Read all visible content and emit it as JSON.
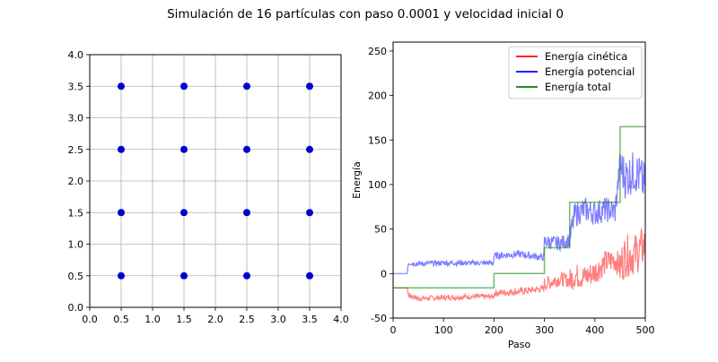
{
  "title": "Simulación de 16 partículas con paso 0.0001 y velocidad inicial 0",
  "chart_data": [
    {
      "type": "scatter",
      "title": "",
      "xlabel": "",
      "ylabel": "",
      "xlim": [
        0,
        4
      ],
      "ylim": [
        0,
        4
      ],
      "grid": true,
      "xticks": [
        "0.0",
        "0.5",
        "1.0",
        "1.5",
        "2.0",
        "2.5",
        "3.0",
        "3.5",
        "4.0"
      ],
      "yticks": [
        "0.0",
        "0.5",
        "1.0",
        "1.5",
        "2.0",
        "2.5",
        "3.0",
        "3.5",
        "4.0"
      ],
      "marker_color": "#0000cc",
      "points": [
        [
          0.5,
          0.5
        ],
        [
          1.5,
          0.5
        ],
        [
          2.5,
          0.5
        ],
        [
          3.5,
          0.5
        ],
        [
          0.5,
          1.5
        ],
        [
          1.5,
          1.5
        ],
        [
          2.5,
          1.5
        ],
        [
          3.5,
          1.5
        ],
        [
          0.5,
          2.5
        ],
        [
          1.5,
          2.5
        ],
        [
          2.5,
          2.5
        ],
        [
          3.5,
          2.5
        ],
        [
          0.5,
          3.5
        ],
        [
          1.5,
          3.5
        ],
        [
          2.5,
          3.5
        ],
        [
          3.5,
          3.5
        ]
      ]
    },
    {
      "type": "line",
      "title": "",
      "xlabel": "Paso",
      "ylabel": "Energía",
      "xlim": [
        0,
        500
      ],
      "ylim": [
        -50,
        260
      ],
      "xticks": [
        "0",
        "100",
        "200",
        "300",
        "400",
        "500"
      ],
      "yticks": [
        "-50",
        "0",
        "50",
        "100",
        "150",
        "200",
        "250"
      ],
      "legend_position": "top-right",
      "series": [
        {
          "name": "Energía cinética",
          "color": "#ff0000",
          "points": [
            [
              0,
              -16
            ],
            [
              28,
              -16
            ],
            [
              30,
              -24
            ],
            [
              50,
              -28
            ],
            [
              100,
              -27
            ],
            [
              150,
              -26
            ],
            [
              199,
              -26
            ],
            [
              200,
              -22
            ],
            [
              250,
              -20
            ],
            [
              299,
              -17
            ],
            [
              300,
              -12
            ],
            [
              330,
              -6
            ],
            [
              350,
              -8
            ],
            [
              360,
              -2
            ],
            [
              380,
              -4
            ],
            [
              400,
              2
            ],
            [
              420,
              12
            ],
            [
              440,
              16
            ],
            [
              450,
              8
            ],
            [
              460,
              20
            ],
            [
              480,
              22
            ],
            [
              500,
              32
            ]
          ]
        },
        {
          "name": "Energía potencial",
          "color": "#0000ff",
          "points": [
            [
              0,
              0
            ],
            [
              28,
              0
            ],
            [
              30,
              12
            ],
            [
              50,
              11
            ],
            [
              100,
              12
            ],
            [
              150,
              12
            ],
            [
              199,
              12
            ],
            [
              200,
              20
            ],
            [
              250,
              22
            ],
            [
              299,
              18
            ],
            [
              300,
              36
            ],
            [
              330,
              34
            ],
            [
              350,
              38
            ],
            [
              360,
              66
            ],
            [
              380,
              72
            ],
            [
              400,
              68
            ],
            [
              420,
              72
            ],
            [
              440,
              70
            ],
            [
              450,
              122
            ],
            [
              460,
              108
            ],
            [
              480,
              115
            ],
            [
              500,
              100
            ]
          ]
        },
        {
          "name": "Energía total",
          "color": "#008000",
          "points": [
            [
              0,
              -16
            ],
            [
              200,
              -16
            ],
            [
              200,
              0
            ],
            [
              300,
              0
            ],
            [
              300,
              29
            ],
            [
              350,
              29
            ],
            [
              350,
              80
            ],
            [
              450,
              80
            ],
            [
              450,
              165
            ],
            [
              500,
              165
            ]
          ]
        }
      ]
    }
  ]
}
